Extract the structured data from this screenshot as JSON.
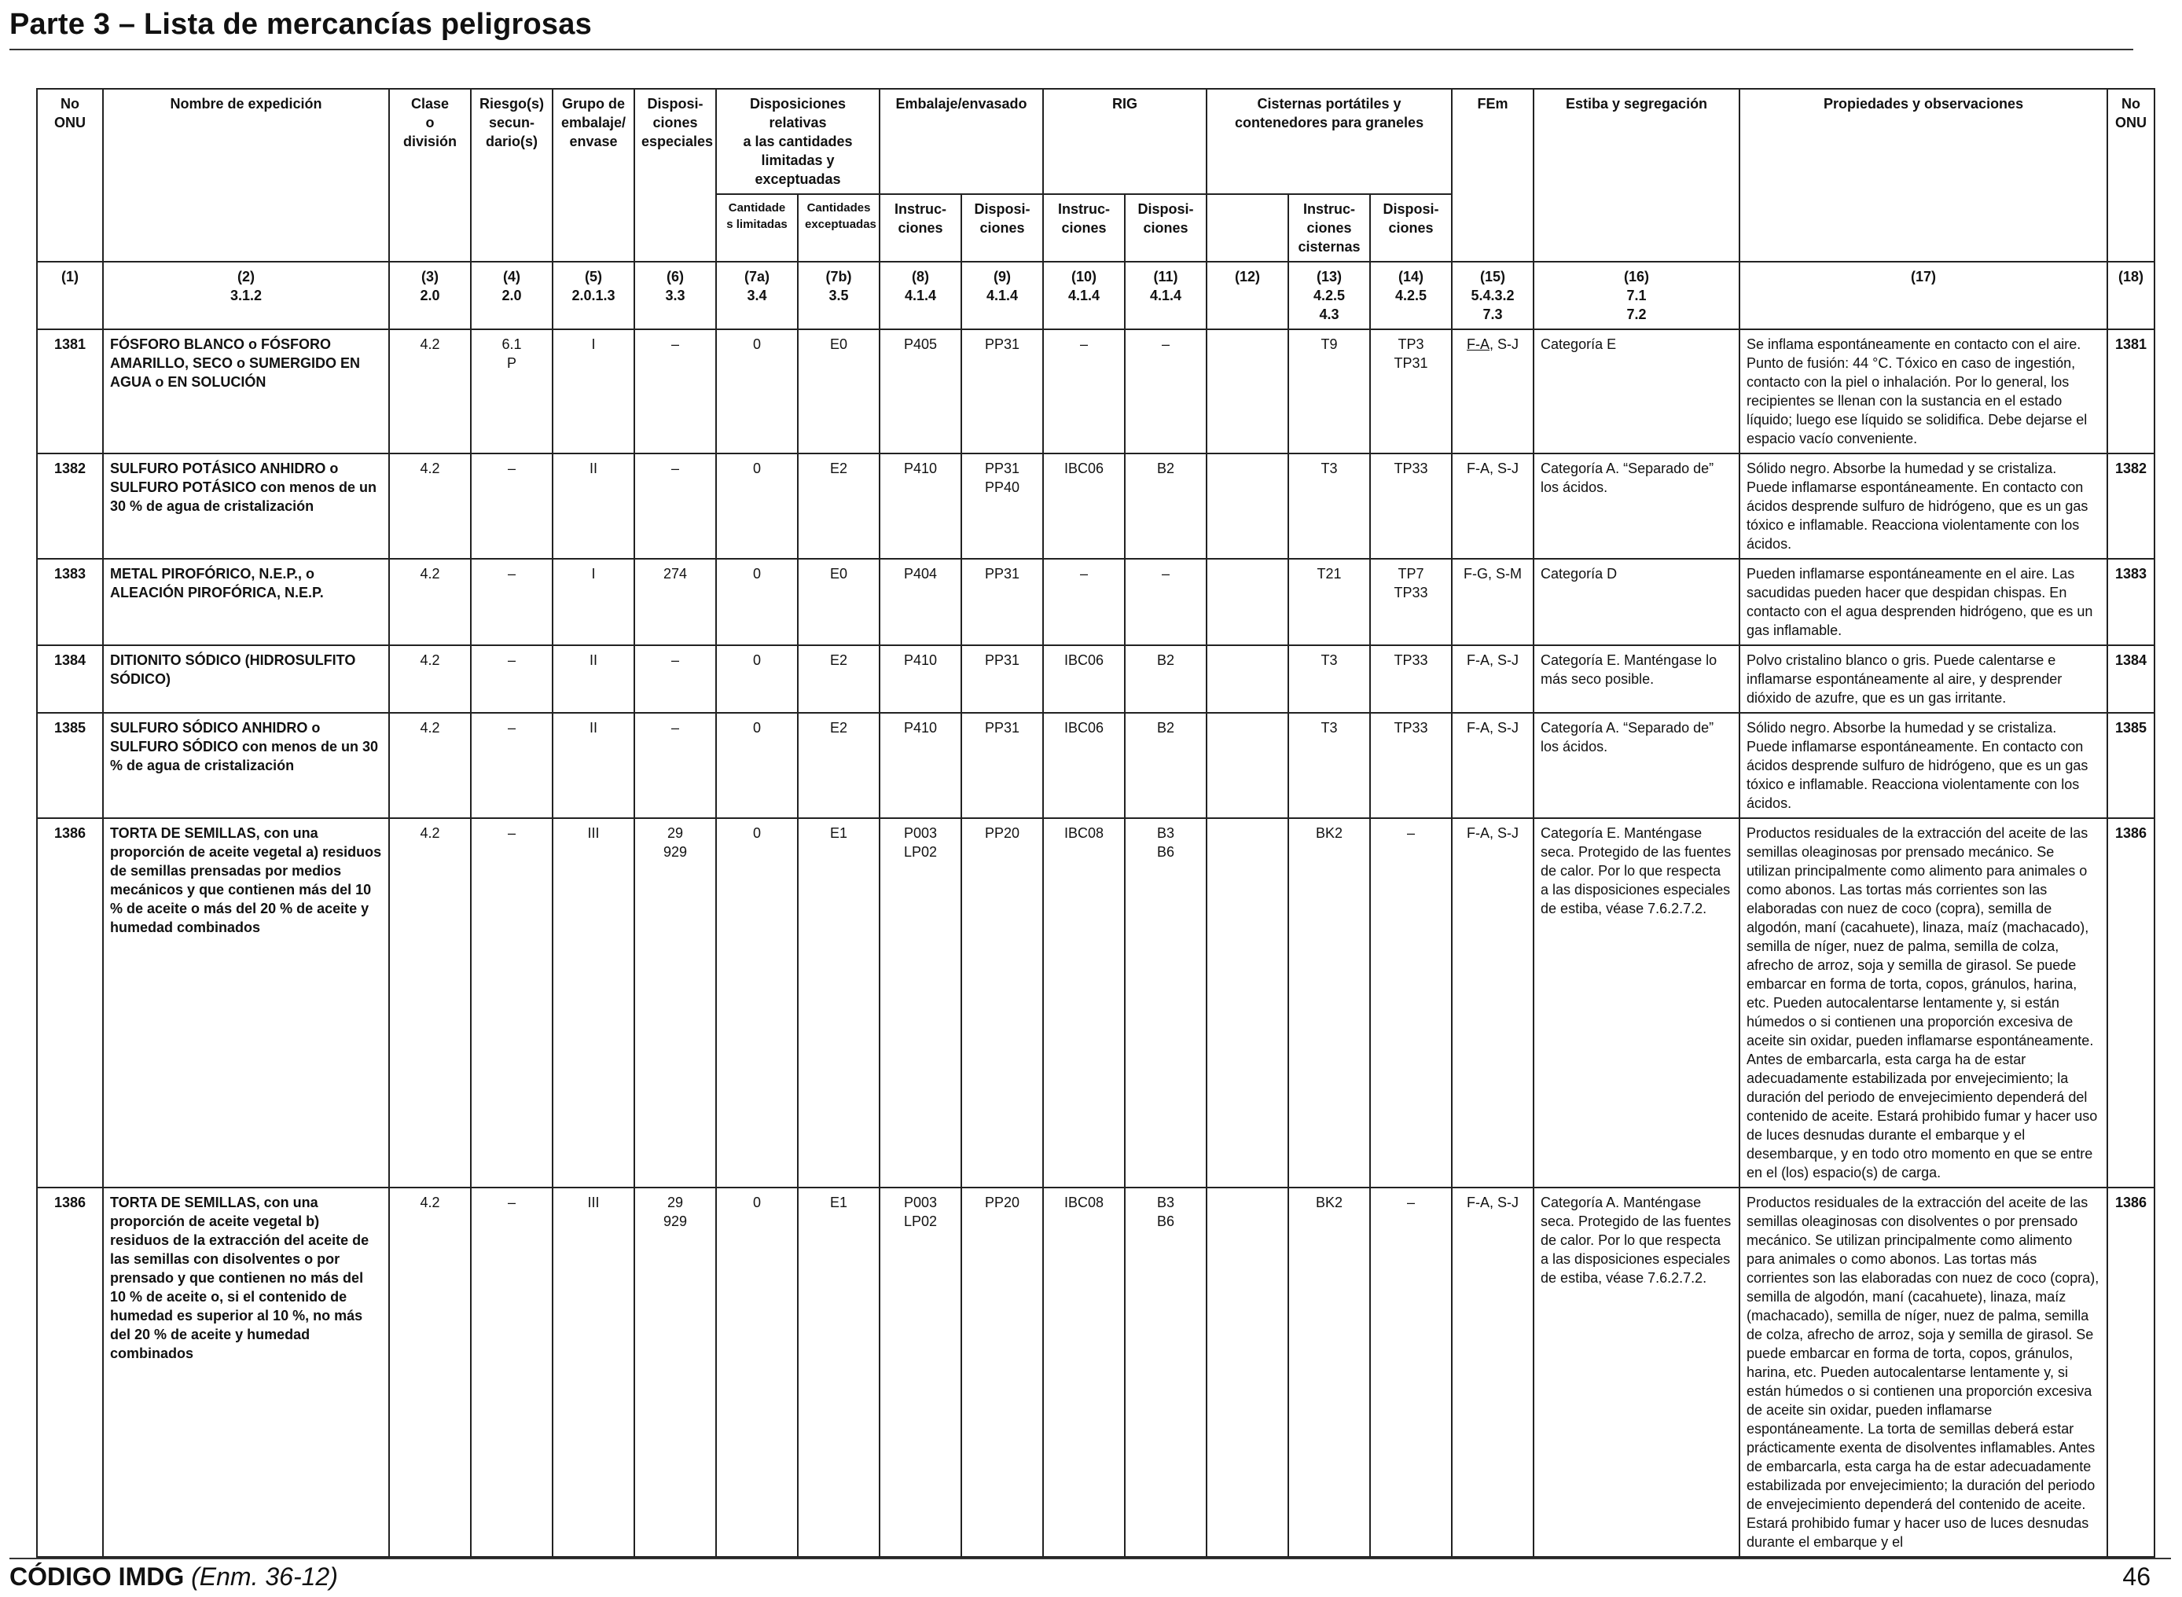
{
  "page": {
    "title": "Parte 3 – Lista de mercancías peligrosas"
  },
  "header": {
    "onu": [
      "No",
      "ONU"
    ],
    "nombre": "Nombre de expedición",
    "clase": [
      "Clase",
      "o",
      "división"
    ],
    "riesgo": [
      "Riesgo(s)",
      "secun-",
      "dario(s)"
    ],
    "grupo": [
      "Grupo de",
      "embalaje/",
      "envase"
    ],
    "dispesp": [
      "Disposi-",
      "ciones",
      "especiales"
    ],
    "dispcant": [
      "Disposiciones relativas",
      "a las cantidades",
      "limitadas y exceptuadas"
    ],
    "embalaje": "Embalaje/envasado",
    "rig": "RIG",
    "cisternas": [
      "Cisternas portátiles y",
      "contenedores para graneles"
    ],
    "fem": "FEm",
    "estiba": "Estiba y segregación",
    "propiedades": "Propiedades y observaciones",
    "onu_right": [
      "No",
      "ONU"
    ],
    "sub_cant_lim": [
      "Cantidade",
      "s limitadas"
    ],
    "sub_cant_exc": [
      "Cantidades",
      "exceptuadas"
    ],
    "sub_instr": [
      "Instruc-",
      "ciones"
    ],
    "sub_disp": [
      "Disposi-",
      "ciones"
    ],
    "sub_rig_instr": [
      "Instruc-",
      "ciones"
    ],
    "sub_rig_disp": [
      "Disposi-",
      "ciones"
    ],
    "sub_cist_instr": [
      "Instruc-",
      "ciones",
      "cisternas"
    ],
    "sub_cist_disp": [
      "Disposi-",
      "ciones"
    ]
  },
  "column_refs": [
    [
      "(1)"
    ],
    [
      "(2)",
      "3.1.2"
    ],
    [
      "(3)",
      "2.0"
    ],
    [
      "(4)",
      "2.0"
    ],
    [
      "(5)",
      "2.0.1.3"
    ],
    [
      "(6)",
      "3.3"
    ],
    [
      "(7a)",
      "3.4"
    ],
    [
      "(7b)",
      "3.5"
    ],
    [
      "(8)",
      "4.1.4"
    ],
    [
      "(9)",
      "4.1.4"
    ],
    [
      "(10)",
      "4.1.4"
    ],
    [
      "(11)",
      "4.1.4"
    ],
    [
      "(12)"
    ],
    [
      "(13)",
      "4.2.5",
      "4.3"
    ],
    [
      "(14)",
      "4.2.5"
    ],
    [
      "(15)",
      "5.4.3.2",
      "7.3"
    ],
    [
      "(16)",
      "7.1",
      "7.2"
    ],
    [
      "(17)"
    ],
    [
      "(18)"
    ]
  ],
  "rows": [
    {
      "onu": "1381",
      "name": [
        {
          "t": "FÓSFORO BLANCO o FÓSFORO AMARILLO, SECO o SUMERGIDO EN AGUA o EN SOLUCIÓN",
          "b": true
        }
      ],
      "clase": [
        "4.2"
      ],
      "riesgo": [
        "6.1",
        "P"
      ],
      "grupo": [
        "I"
      ],
      "dispesp": [
        "–"
      ],
      "cant_lim": [
        "0"
      ],
      "cant_exc": [
        "E0"
      ],
      "emb_instr": [
        "P405"
      ],
      "emb_disp": [
        "PP31"
      ],
      "rig_instr": [
        "–"
      ],
      "rig_disp": [
        "–"
      ],
      "c12": [],
      "cist_instr": [
        "T9"
      ],
      "cist_disp": [
        "TP3",
        "TP31"
      ],
      "fem_a": "F-A",
      "fem_b": ", S-J",
      "fem_underline": true,
      "estiba": "Categoría E",
      "props": "Se inflama espontáneamente en contacto con el aire. Punto de fusión: 44 °C. Tóxico en caso de ingestión, contacto con la piel o inhalación. Por lo general, los recipientes se llenan con la sustancia en el estado líquido; luego ese líquido se solidifica. Debe dejarse el espacio vacío conveniente."
    },
    {
      "onu": "1382",
      "name": [
        {
          "t": "SULFURO POTÁSICO ANHIDRO o SULFURO POTÁSICO",
          "b": true
        },
        {
          "t": " con menos de un 30 % de agua de cristalización",
          "b": false
        }
      ],
      "clase": [
        "4.2"
      ],
      "riesgo": [
        "–"
      ],
      "grupo": [
        "II"
      ],
      "dispesp": [
        "–"
      ],
      "cant_lim": [
        "0"
      ],
      "cant_exc": [
        "E2"
      ],
      "emb_instr": [
        "P410"
      ],
      "emb_disp": [
        "PP31",
        "PP40"
      ],
      "rig_instr": [
        "IBC06"
      ],
      "rig_disp": [
        "B2"
      ],
      "c12": [],
      "cist_instr": [
        "T3"
      ],
      "cist_disp": [
        "TP33"
      ],
      "fem_a": "F-A",
      "fem_b": ", S-J",
      "fem_underline": false,
      "estiba": "Categoría A. “Separado de” los ácidos.",
      "props": "Sólido negro. Absorbe la humedad y se cristaliza. Puede inflamarse espontáneamente. En contacto con ácidos desprende sulfuro de hidrógeno, que es un gas tóxico e inflamable. Reacciona violentamente con los ácidos."
    },
    {
      "onu": "1383",
      "name": [
        {
          "t": "METAL PIROFÓRICO, N.E.P., o ALEACIÓN PIROFÓRICA, N.E.P.",
          "b": true
        }
      ],
      "clase": [
        "4.2"
      ],
      "riesgo": [
        "–"
      ],
      "grupo": [
        "I"
      ],
      "dispesp": [
        "274"
      ],
      "cant_lim": [
        "0"
      ],
      "cant_exc": [
        "E0"
      ],
      "emb_instr": [
        "P404"
      ],
      "emb_disp": [
        "PP31"
      ],
      "rig_instr": [
        "–"
      ],
      "rig_disp": [
        "–"
      ],
      "c12": [],
      "cist_instr": [
        "T21"
      ],
      "cist_disp": [
        "TP7",
        "TP33"
      ],
      "fem_a": "F-G",
      "fem_b": ", S-M",
      "fem_underline": false,
      "estiba": "Categoría D",
      "props": "Pueden inflamarse espontáneamente en el aire. Las sacudidas pueden hacer que despidan chispas. En contacto con el agua desprenden hidrógeno, que es un gas inflamable."
    },
    {
      "onu": "1384",
      "name": [
        {
          "t": "DITIONITO SÓDICO (HIDROSULFITO SÓDICO)",
          "b": true
        }
      ],
      "clase": [
        "4.2"
      ],
      "riesgo": [
        "–"
      ],
      "grupo": [
        "II"
      ],
      "dispesp": [
        "–"
      ],
      "cant_lim": [
        "0"
      ],
      "cant_exc": [
        "E2"
      ],
      "emb_instr": [
        "P410"
      ],
      "emb_disp": [
        "PP31"
      ],
      "rig_instr": [
        "IBC06"
      ],
      "rig_disp": [
        "B2"
      ],
      "c12": [],
      "cist_instr": [
        "T3"
      ],
      "cist_disp": [
        "TP33"
      ],
      "fem_a": "F-A",
      "fem_b": ", S-J",
      "fem_underline": false,
      "estiba": "Categoría E. Manténgase lo más seco posible.",
      "props": "Polvo cristalino blanco o gris. Puede calentarse e inflamarse espontáneamente al aire, y desprender dióxido de azufre, que es un gas irritante."
    },
    {
      "onu": "1385",
      "name": [
        {
          "t": "SULFURO SÓDICO ANHIDRO o SULFURO SÓDICO",
          "b": true
        },
        {
          "t": " con menos de un 30 % de agua de cristalización",
          "b": false
        }
      ],
      "clase": [
        "4.2"
      ],
      "riesgo": [
        "–"
      ],
      "grupo": [
        "II"
      ],
      "dispesp": [
        "–"
      ],
      "cant_lim": [
        "0"
      ],
      "cant_exc": [
        "E2"
      ],
      "emb_instr": [
        "P410"
      ],
      "emb_disp": [
        "PP31"
      ],
      "rig_instr": [
        "IBC06"
      ],
      "rig_disp": [
        "B2"
      ],
      "c12": [],
      "cist_instr": [
        "T3"
      ],
      "cist_disp": [
        "TP33"
      ],
      "fem_a": "F-A",
      "fem_b": ", S-J",
      "fem_underline": false,
      "estiba": "Categoría A. “Separado de” los ácidos.",
      "props": "Sólido negro. Absorbe la humedad y se cristaliza. Puede inflamarse espontáneamente. En contacto con ácidos desprende sulfuro de hidrógeno, que es un gas tóxico e inflamable. Reacciona violentamente con los ácidos."
    },
    {
      "onu": "1386",
      "name": [
        {
          "t": "TORTA DE SEMILLAS,",
          "b": true
        },
        {
          "t": " con una proporción de aceite vegetal a) residuos de semillas prensadas por medios mecánicos y que contienen más del 10 % de aceite o más del 20 % de aceite y humedad combinados",
          "b": false
        }
      ],
      "clase": [
        "4.2"
      ],
      "riesgo": [
        "–"
      ],
      "grupo": [
        "III"
      ],
      "dispesp": [
        "29",
        "929"
      ],
      "cant_lim": [
        "0"
      ],
      "cant_exc": [
        "E1"
      ],
      "emb_instr": [
        "P003",
        "LP02"
      ],
      "emb_disp": [
        "PP20"
      ],
      "rig_instr": [
        "IBC08"
      ],
      "rig_disp": [
        "B3",
        "B6"
      ],
      "c12": [],
      "cist_instr": [
        "BK2"
      ],
      "cist_disp": [
        "–"
      ],
      "fem_a": "F-A",
      "fem_b": ", S-J",
      "fem_underline": false,
      "estiba": "Categoría E. Manténgase seca. Protegido de las fuentes de calor. Por lo que respecta a las disposiciones especiales de estiba, véase 7.6.2.7.2.",
      "props": "Productos residuales de la extracción del aceite de las semillas oleaginosas por prensado mecánico. Se utilizan principalmente como alimento para animales o como abonos. Las tortas más corrientes son las elaboradas con nuez de coco (copra), semilla de algodón, maní (cacahuete), linaza, maíz (machacado), semilla de níger, nuez de palma, semilla de colza, afrecho de arroz, soja y semilla de girasol. Se puede embarcar en forma de torta, copos, gránulos, harina, etc. Pueden autocalentarse lentamente y, si están húmedos o si contienen una proporción excesiva de aceite sin oxidar, pueden inflamarse espontáneamente. Antes de embarcarla, esta carga ha de estar adecuadamente estabilizada por envejecimiento; la duración del periodo de envejecimiento dependerá del contenido de aceite. Estará prohibido fumar y hacer uso de luces desnudas durante el embarque y el desembarque, y en todo otro momento en que se entre en el (los) espacio(s) de carga."
    },
    {
      "onu": "1386",
      "name": [
        {
          "t": "TORTA DE SEMILLAS,",
          "b": true
        },
        {
          "t": " con una proporción de aceite vegetal b) residuos de la extracción del aceite de las semillas con disolventes o por prensado y que contienen no más del 10 % de aceite o, si el contenido de humedad es superior al 10 %, no más del 20 % de aceite y humedad combinados",
          "b": false
        }
      ],
      "clase": [
        "4.2"
      ],
      "riesgo": [
        "–"
      ],
      "grupo": [
        "III"
      ],
      "dispesp": [
        "29",
        "929"
      ],
      "cant_lim": [
        "0"
      ],
      "cant_exc": [
        "E1"
      ],
      "emb_instr": [
        "P003",
        "LP02"
      ],
      "emb_disp": [
        "PP20"
      ],
      "rig_instr": [
        "IBC08"
      ],
      "rig_disp": [
        "B3",
        "B6"
      ],
      "c12": [],
      "cist_instr": [
        "BK2"
      ],
      "cist_disp": [
        "–"
      ],
      "fem_a": "F-A",
      "fem_b": ", S-J",
      "fem_underline": false,
      "estiba": "Categoría A. Manténgase seca. Protegido de las fuentes de calor. Por lo que respecta a las disposiciones especiales de estiba, véase 7.6.2.7.2.",
      "props": "Productos residuales de la extracción del aceite de las semillas oleaginosas con disolventes o por prensado mecánico. Se utilizan principalmente como alimento para animales o como abonos. Las tortas más corrientes son las elaboradas con nuez de coco (copra), semilla de algodón, maní (cacahuete), linaza, maíz (machacado), semilla de níger, nuez de palma, semilla de colza, afrecho de arroz, soja y semilla de girasol. Se puede embarcar en forma de torta, copos, gránulos, harina, etc. Pueden autocalentarse lentamente y, si están húmedos o si contienen una proporción excesiva de aceite sin oxidar, pueden inflamarse espontáneamente. La torta de semillas deberá estar prácticamente exenta de disolventes inflamables. Antes de embarcarla, esta carga ha de estar adecuadamente estabilizada por envejecimiento; la duración del periodo de envejecimiento dependerá del contenido de aceite. Estará prohibido fumar y hacer uso de luces desnudas durante el embarque y el"
    }
  ],
  "footer": {
    "code": "CÓDIGO IMDG",
    "amendment": "(Enm. 36-12)",
    "page_number": "46"
  }
}
